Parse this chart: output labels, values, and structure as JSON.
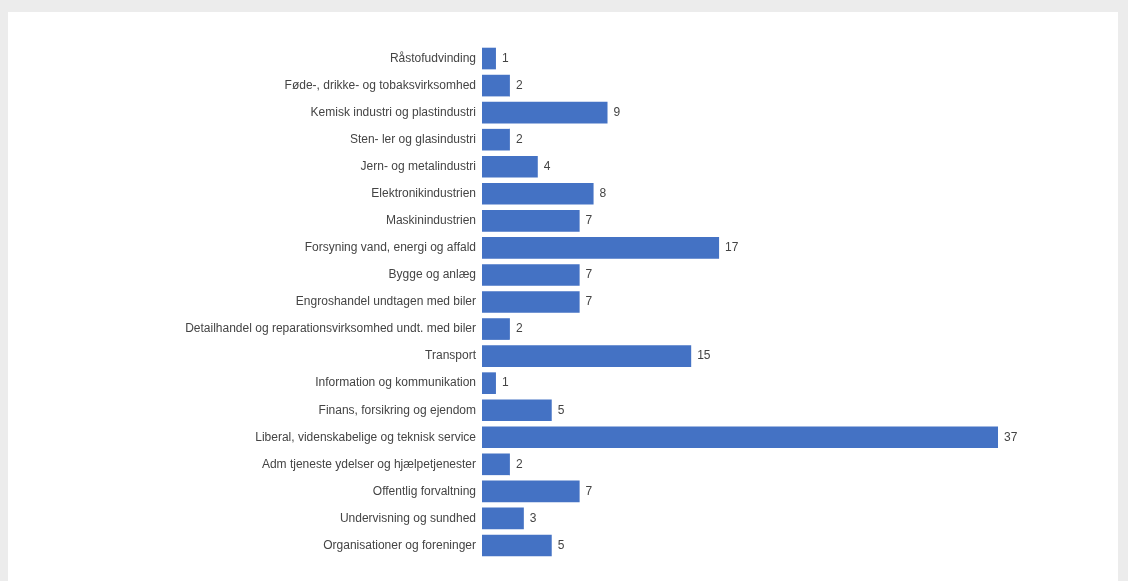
{
  "chart_data": {
    "type": "bar",
    "orientation": "horizontal",
    "data_labels": true,
    "color": "#4472c4",
    "categories": [
      "Råstofudvinding",
      "Føde-, drikke- og tobaksvirksomhed",
      "Kemisk industri og plastindustri",
      "Sten- ler og glasindustri",
      "Jern- og metalindustri",
      "Elektronikindustrien",
      "Maskinindustrien",
      "Forsyning vand, energi og affald",
      "Bygge og anlæg",
      "Engroshandel undtagen med biler",
      "Detailhandel og reparationsvirksomhed undt. med biler",
      "Transport",
      "Information og kommunikation",
      "Finans, forsikring og ejendom",
      "Liberal, videnskabelige og teknisk service",
      "Adm tjeneste ydelser og hjælpetjenester",
      "Offentlig forvaltning",
      "Undervisning og sundhed",
      "Organisationer og foreninger"
    ],
    "values": [
      1,
      2,
      9,
      2,
      4,
      8,
      7,
      17,
      7,
      7,
      2,
      15,
      1,
      5,
      37,
      2,
      7,
      3,
      5
    ]
  }
}
